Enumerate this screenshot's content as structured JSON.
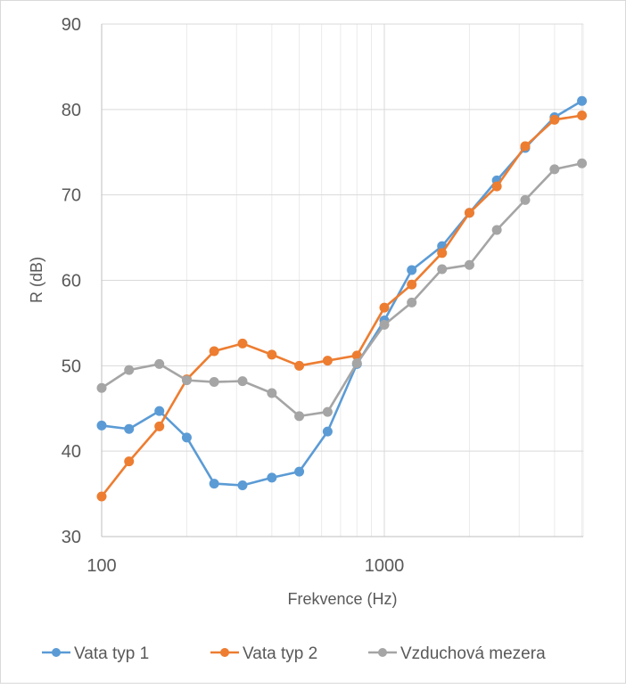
{
  "chart_data": {
    "type": "line",
    "title": "",
    "xlabel": "Frekvence (Hz)",
    "ylabel": "R (dB)",
    "xscale": "log",
    "xlim": [
      100,
      5000
    ],
    "ylim": [
      30,
      90
    ],
    "yticks": [
      30,
      40,
      50,
      60,
      70,
      80,
      90
    ],
    "xticks": [
      100,
      1000
    ],
    "xtick_labels": [
      "100",
      "1000"
    ],
    "ytick_labels": [
      "30",
      "40",
      "50",
      "60",
      "70",
      "80",
      "90"
    ],
    "grid": true,
    "legend_position": "bottom",
    "x": [
      100,
      125,
      160,
      200,
      250,
      315,
      400,
      500,
      630,
      800,
      1000,
      1250,
      1600,
      2000,
      2500,
      3150,
      4000,
      5000
    ],
    "series": [
      {
        "name": "Vata typ 1",
        "color": "#5b9bd5",
        "values": [
          43.0,
          42.6,
          44.7,
          41.6,
          36.2,
          36.0,
          36.9,
          37.6,
          42.3,
          50.2,
          55.3,
          61.2,
          64.0,
          67.9,
          71.7,
          75.5,
          79.1,
          81.0
        ]
      },
      {
        "name": "Vata typ 2",
        "color": "#ed7d31",
        "values": [
          34.7,
          38.8,
          42.9,
          48.4,
          51.7,
          52.6,
          51.3,
          50.0,
          50.6,
          51.2,
          56.8,
          59.5,
          63.2,
          67.9,
          71.0,
          75.7,
          78.8,
          79.3
        ]
      },
      {
        "name": "Vzduchová mezera",
        "color": "#a5a5a5",
        "values": [
          47.4,
          49.5,
          50.2,
          48.3,
          48.1,
          48.2,
          46.8,
          44.1,
          44.6,
          50.3,
          54.8,
          57.4,
          61.3,
          61.8,
          65.9,
          69.4,
          73.0,
          73.7
        ]
      }
    ]
  }
}
